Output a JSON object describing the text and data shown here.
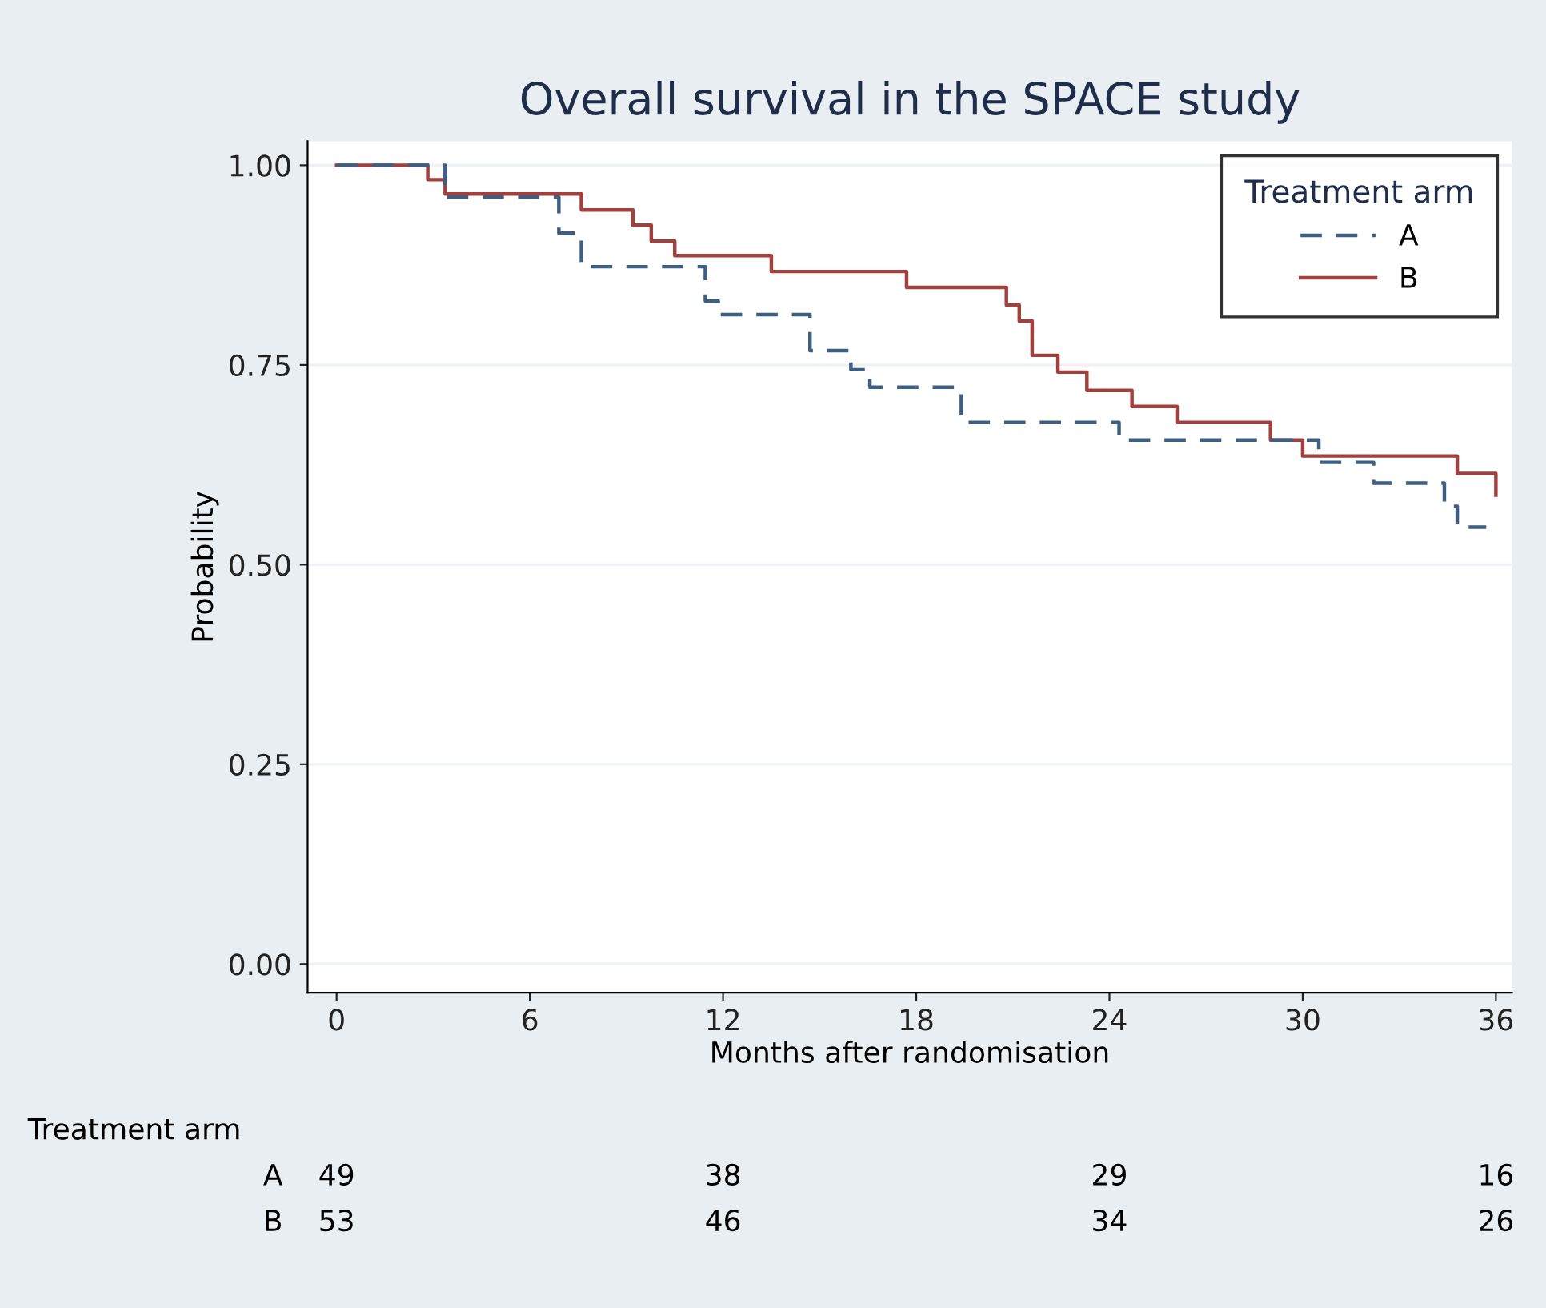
{
  "chart_data": {
    "type": "step",
    "title": "Overall survival in the SPACE study",
    "xlabel": "Months after randomisation",
    "ylabel": "Probability",
    "legend_title": "Treatment arm",
    "legend": "top right",
    "grid": "y",
    "line_style": "solid",
    "marker": "none",
    "series": [
      {
        "name": "A",
        "color": "#3e5f7f",
        "line_style": "dashed",
        "x": [
          0,
          3.37,
          6.9,
          7.6,
          11.45,
          11.85,
          14.7,
          15.97,
          16.56,
          19.4,
          24.3,
          30.5,
          32.2,
          34.4,
          34.8,
          35.7
        ],
        "values": [
          1.0,
          0.96,
          0.915,
          0.873,
          0.83,
          0.813,
          0.768,
          0.744,
          0.722,
          0.678,
          0.656,
          0.628,
          0.602,
          0.573,
          0.547,
          0.547
        ]
      },
      {
        "name": "B",
        "color": "#a0413f",
        "x": [
          0,
          2.83,
          3.37,
          7.6,
          9.2,
          9.77,
          10.5,
          13.5,
          17.7,
          20.8,
          21.2,
          21.6,
          22.4,
          23.3,
          24.7,
          26.1,
          29.0,
          30.0,
          34.8,
          36.0
        ],
        "values": [
          1.0,
          0.982,
          0.964,
          0.944,
          0.925,
          0.905,
          0.887,
          0.867,
          0.847,
          0.825,
          0.805,
          0.762,
          0.741,
          0.718,
          0.698,
          0.678,
          0.656,
          0.636,
          0.614,
          0.587
        ]
      }
    ],
    "xlim": [
      -0.9,
      36.5
    ],
    "xticks": [
      0,
      6,
      12,
      18,
      24,
      30,
      36
    ],
    "ylim": [
      -0.036,
      1.03
    ],
    "yticks": [
      {
        "value": 0,
        "label": "0.00"
      },
      {
        "value": 0.25,
        "label": "0.25"
      },
      {
        "value": 0.5,
        "label": "0.50"
      },
      {
        "value": 0.75,
        "label": "0.75"
      },
      {
        "value": 1,
        "label": "1.00"
      }
    ],
    "annotations": [
      "Treatment arm",
      "A",
      "49",
      "38",
      "29",
      "16",
      "B",
      "53",
      "46",
      "34",
      "26"
    ]
  }
}
